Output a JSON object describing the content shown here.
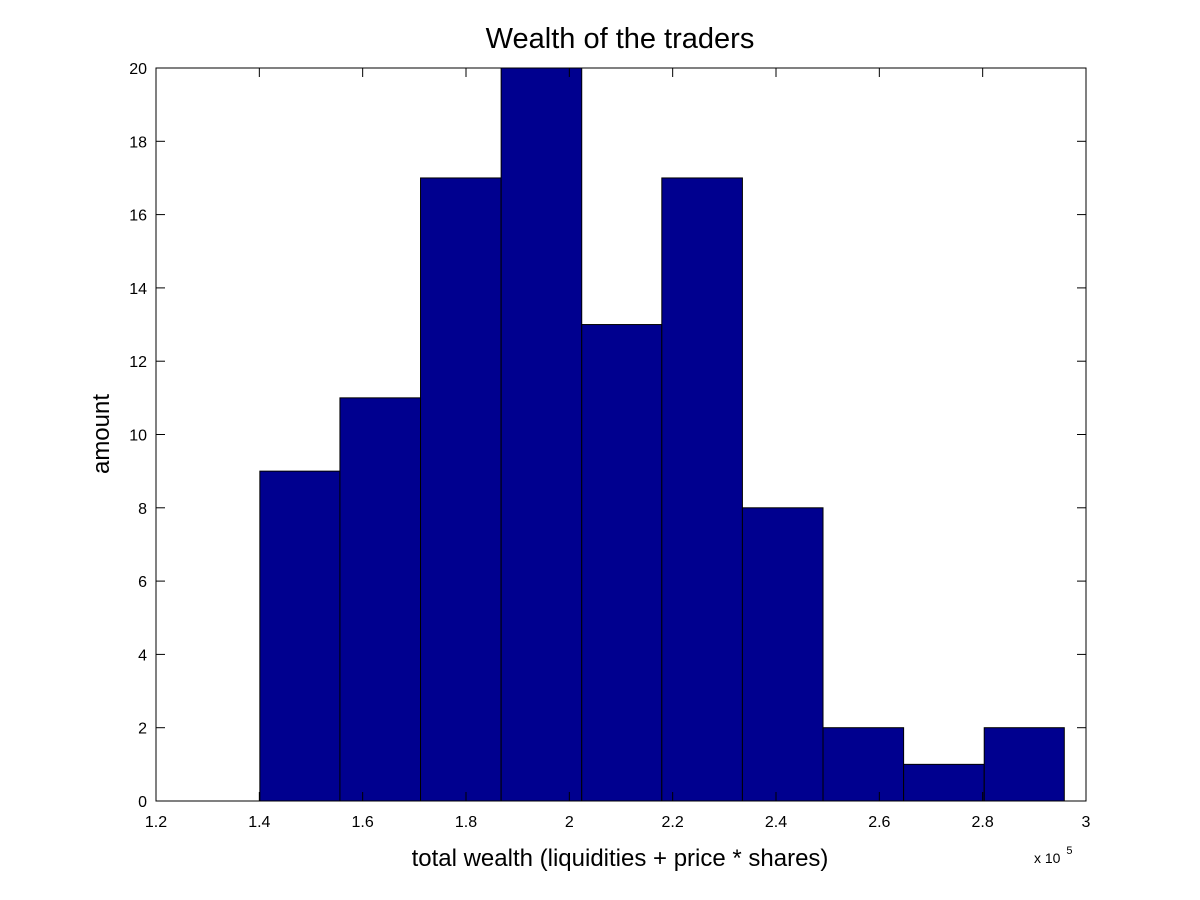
{
  "chart_data": {
    "type": "bar",
    "title": "Wealth of the traders",
    "xlabel": "total wealth (liquidities + price * shares)",
    "ylabel": "amount",
    "x_multiplier_text": "x 10",
    "x_multiplier_exponent": "5",
    "x_scale": 100000,
    "xlim": [
      1.2,
      3.0
    ],
    "ylim": [
      0,
      20
    ],
    "xticks": [
      1.2,
      1.4,
      1.6,
      1.8,
      2,
      2.2,
      2.4,
      2.6,
      2.8,
      3
    ],
    "xtick_labels": [
      "1.2",
      "1.4",
      "1.6",
      "1.8",
      "2",
      "2.2",
      "2.4",
      "2.6",
      "2.8",
      "3"
    ],
    "yticks": [
      0,
      2,
      4,
      6,
      8,
      10,
      12,
      14,
      16,
      18,
      20
    ],
    "ytick_labels": [
      "0",
      "2",
      "4",
      "6",
      "8",
      "10",
      "12",
      "14",
      "16",
      "18",
      "20"
    ],
    "bin_edges": [
      1.401,
      1.556,
      1.712,
      1.868,
      2.024,
      2.179,
      2.335,
      2.491,
      2.647,
      2.803,
      2.958
    ],
    "values": [
      9,
      11,
      17,
      20,
      13,
      17,
      8,
      2,
      1,
      2
    ],
    "bar_color": "#00008f",
    "edge_color": "#000000",
    "grid": false,
    "legend": "none"
  }
}
